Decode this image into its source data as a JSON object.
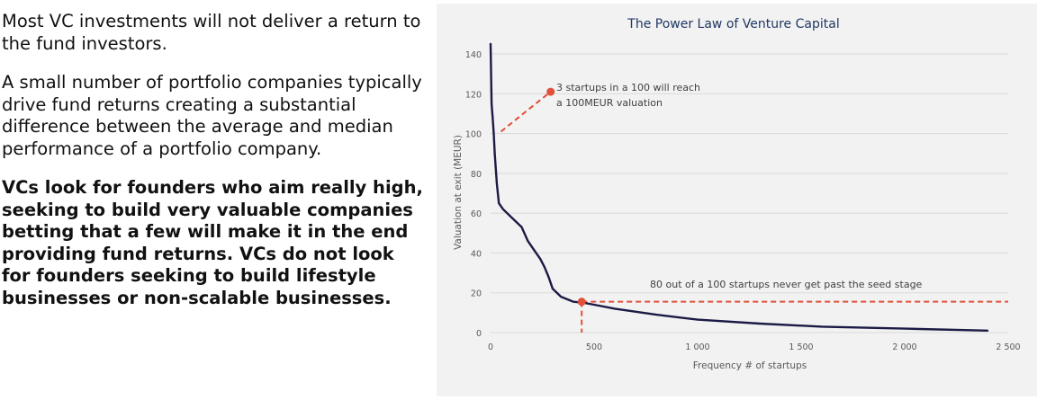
{
  "text": {
    "para1": "Most VC investments will not deliver a return to the fund investors.",
    "para2": "A small number of portfolio companies typically drive fund returns creating a substantial difference between the average and median performance of a portfolio company.",
    "para3": "VCs look for founders who aim really high, seeking to build very valuable companies betting that a few will make it in the end providing fund returns. VCs do not look for founders seeking to build lifestyle businesses or non-scalable businesses."
  },
  "colors": {
    "curve": "#1b1a45",
    "annotation": "#e0503a",
    "panel_bg": "#f2f2f2",
    "gridline": "#d9d9d9",
    "text": "#595959",
    "title": "#1f3864"
  },
  "chart_data": {
    "type": "line",
    "title": "The Power Law of Venture Capital",
    "xlabel": "Frequency # of startups",
    "ylabel": "Valuation at exit (MEUR)",
    "xlim": [
      0,
      2500
    ],
    "ylim": [
      0,
      140
    ],
    "x_ticks": [
      0,
      500,
      1000,
      1500,
      2000,
      2500
    ],
    "x_tick_labels": [
      "0",
      "500",
      "1 000",
      "1 500",
      "2 000",
      "2 500"
    ],
    "y_ticks": [
      0,
      20,
      40,
      60,
      80,
      100,
      120,
      140
    ],
    "y_tick_labels": [
      "0",
      "20",
      "40",
      "60",
      "80",
      "100",
      "120",
      "140"
    ],
    "grid": "horizontal",
    "series": [
      {
        "x": [
          0,
          5,
          10,
          15,
          20,
          30,
          40,
          60,
          100,
          150,
          180,
          200,
          240,
          260,
          280,
          300,
          340,
          400,
          450,
          500,
          600,
          800,
          1000,
          1300,
          1600,
          2000,
          2400
        ],
        "y": [
          145,
          115,
          108,
          100,
          90,
          75,
          65,
          62,
          58,
          53,
          46,
          43,
          37,
          33,
          28,
          22,
          18,
          15.5,
          15,
          14,
          12,
          9,
          6.5,
          4.5,
          3,
          2,
          1
        ]
      }
    ],
    "annotations": [
      {
        "text_lines": [
          "3 startups in a 100 will reach",
          "a 100MEUR valuation"
        ],
        "marker": {
          "x": 290,
          "y": 121
        },
        "line_from": {
          "x": 50,
          "y": 101
        }
      },
      {
        "text": "80 out of a 100 startups never get past the seed stage",
        "marker": {
          "x": 440,
          "y": 15.5
        },
        "h_line_to_x": 2500,
        "v_line_to_y": 0
      }
    ]
  }
}
